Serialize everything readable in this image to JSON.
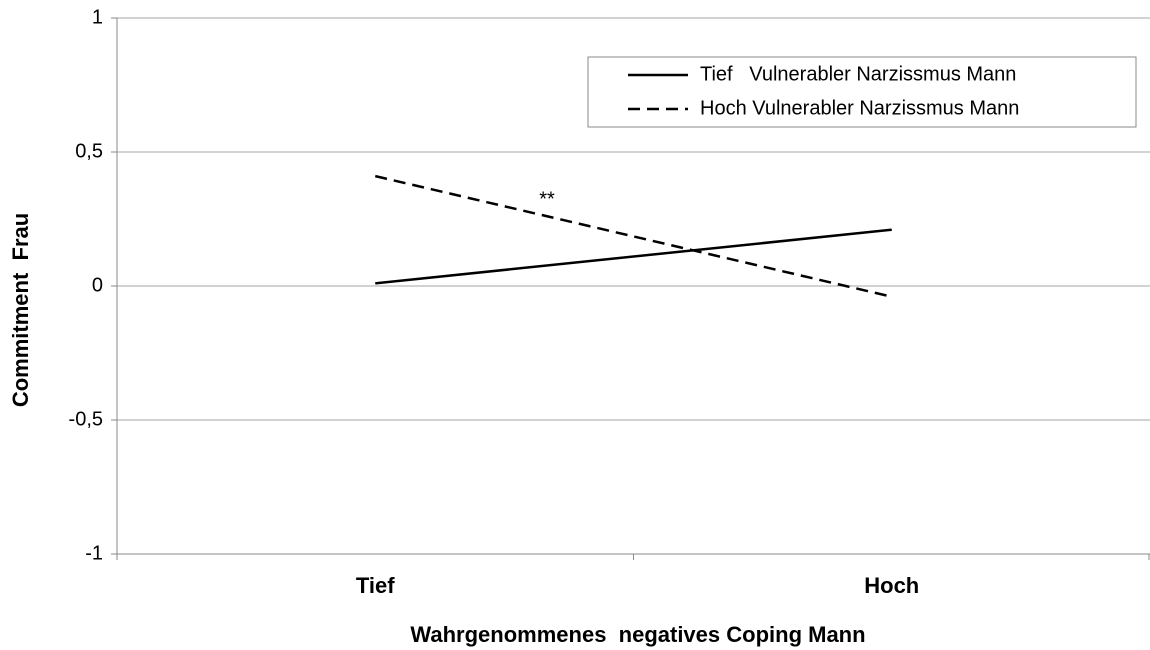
{
  "chart_data": {
    "type": "line",
    "xlabel": "Wahrgenommenes  negatives Coping Mann",
    "ylabel": "Commitment  Frau",
    "categories": [
      "Tief",
      "Hoch"
    ],
    "series": [
      {
        "name": "Tief   Vulnerabler Narzissmus Mann",
        "color": "#000000",
        "dash": "solid",
        "values": [
          0.01,
          0.21
        ]
      },
      {
        "name": "Hoch Vulnerabler Narzissmus Mann",
        "color": "#000000",
        "dash": "dashed",
        "values": [
          0.41,
          -0.04
        ]
      }
    ],
    "annotation": "**",
    "ylim": [
      -1,
      1
    ],
    "yticks": [
      -1,
      {
        "value": -0.5,
        "label": "-0,5"
      },
      0,
      {
        "value": 0.5,
        "label": "0,5"
      },
      1
    ],
    "grid": true,
    "legend": "top-right"
  }
}
